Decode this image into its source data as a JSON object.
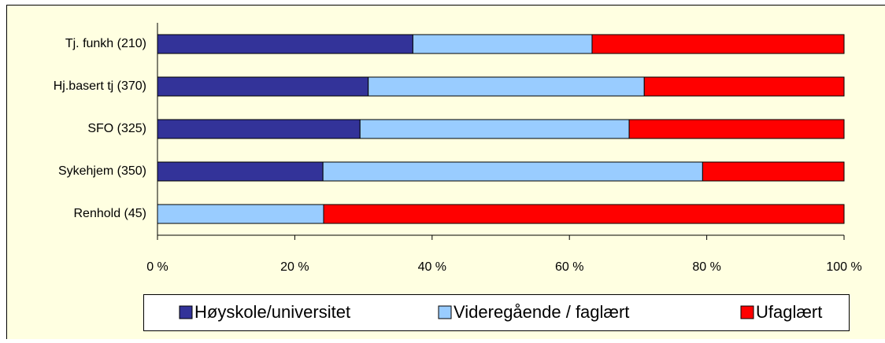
{
  "chart_data": {
    "type": "stacked-bar-horizontal",
    "categories": [
      "Tj. funkh (210)",
      "Hj.basert tj (370)",
      "SFO (325)",
      "Sykehjem (350)",
      "Renhold (45)"
    ],
    "series": [
      {
        "name": "Høyskole/universitet",
        "color": "#333399",
        "values": [
          37.2,
          30.7,
          29.5,
          24.1,
          0
        ]
      },
      {
        "name": "Videregående / faglært",
        "color": "#99ccff",
        "values": [
          26.1,
          40.2,
          39.2,
          55.3,
          24.2
        ]
      },
      {
        "name": "Ufaglært",
        "color": "#ff0000",
        "values": [
          36.7,
          29.1,
          31.3,
          20.6,
          75.8
        ]
      }
    ],
    "xlim": [
      0,
      100
    ],
    "xticks": [
      {
        "value": 0,
        "label": "0 %"
      },
      {
        "value": 20,
        "label": "20 %"
      },
      {
        "value": 40,
        "label": "40 %"
      },
      {
        "value": 60,
        "label": "60 %"
      },
      {
        "value": 80,
        "label": "80 %"
      },
      {
        "value": 100,
        "label": "100 %"
      }
    ],
    "legend": "bottom"
  }
}
